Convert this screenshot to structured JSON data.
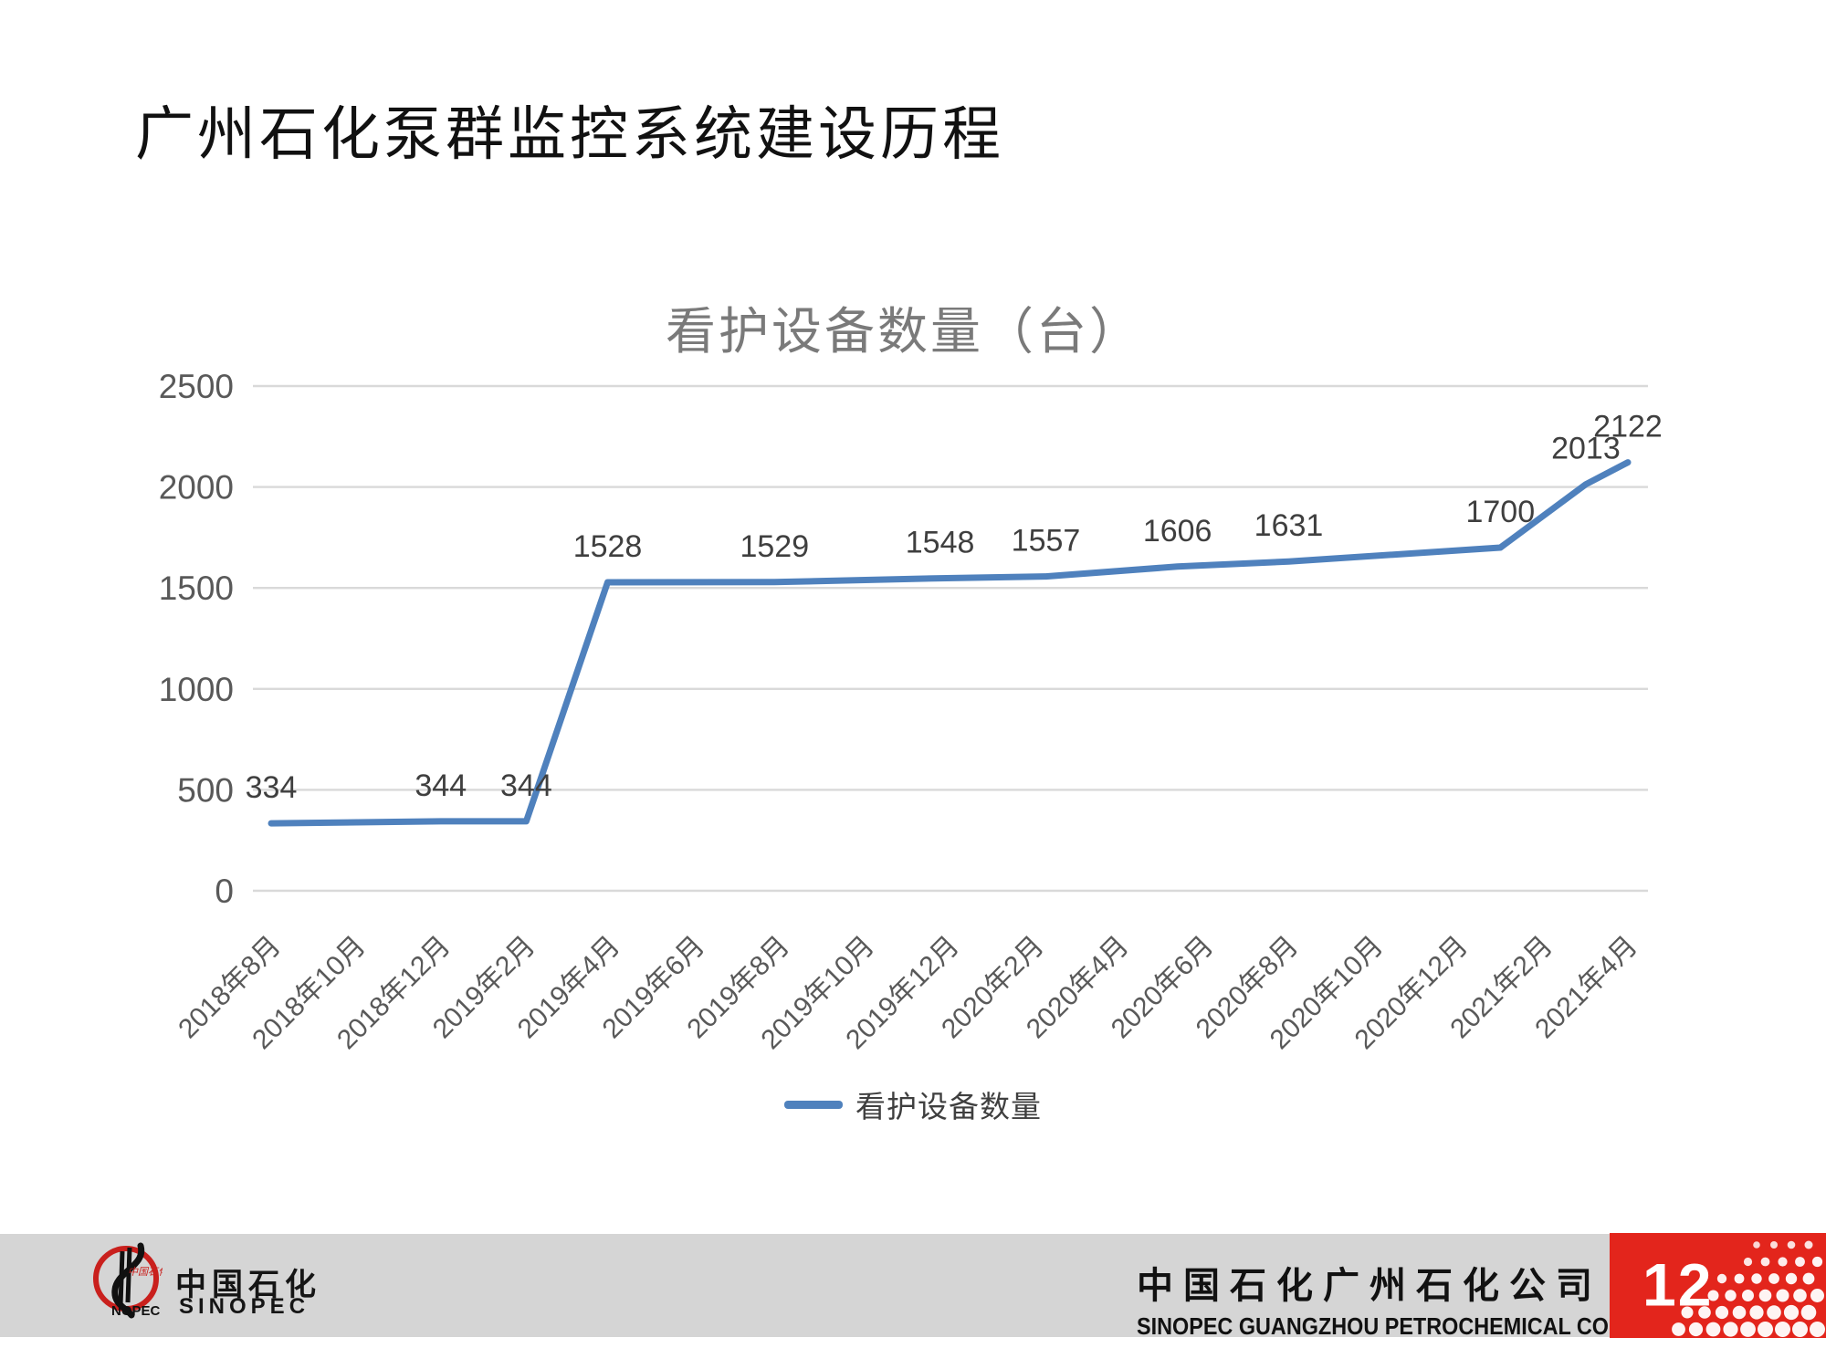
{
  "slide": {
    "title": "广州石化泵群监控系统建设历程",
    "page_number": "12"
  },
  "chart_data": {
    "type": "line",
    "title": "看护设备数量（台）",
    "legend_label": "看护设备数量",
    "legend_position": "bottom",
    "grid": "horizontal",
    "colors": {
      "line": "#4F81BD",
      "gridline": "#D9D9D9",
      "tick_label": "#595959",
      "data_label": "#3F3F3F",
      "title": "#7A7A7A"
    },
    "y_axis": {
      "min": 0,
      "max": 2500,
      "ticks": [
        0,
        500,
        1000,
        1500,
        2000,
        2500
      ]
    },
    "x_axis": {
      "tick_labels": [
        "2018年8月",
        "2018年10月",
        "2018年12月",
        "2019年2月",
        "2019年4月",
        "2019年6月",
        "2019年8月",
        "2019年10月",
        "2019年12月",
        "2020年2月",
        "2020年4月",
        "2020年6月",
        "2020年8月",
        "2020年10月",
        "2020年12月",
        "2021年2月",
        "2021年4月"
      ]
    },
    "series": [
      {
        "name": "看护设备数量",
        "values": [
          334,
          344,
          344,
          1528,
          1529,
          1548,
          1557,
          1606,
          1631,
          1700,
          2013,
          2122
        ],
        "x_frac": [
          0,
          0.125,
          0.188,
          0.248,
          0.371,
          0.493,
          0.571,
          0.668,
          0.75,
          0.906,
          0.969,
          1.0
        ],
        "data_labels": [
          "334",
          "344",
          "344",
          "1528",
          "1529",
          "1548",
          "1557",
          "1606",
          "1631",
          "1700",
          "2013",
          "2122"
        ]
      }
    ]
  },
  "footer": {
    "brand_cn": "中国石化",
    "brand_en": "SINOPEC",
    "company_cn": "中国石化广州石化公司",
    "company_en": "SINOPEC GUANGZHOU PETROCHEMICAL COMPANY"
  }
}
